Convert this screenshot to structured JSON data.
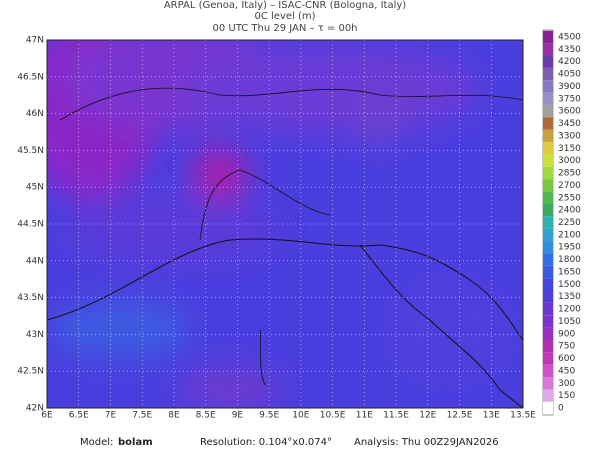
{
  "header": {
    "line1": "ARPAL (Genoa, Italy)  –  ISAC-CNR (Bologna, Italy)",
    "line2": "0C level (m)",
    "line3": "00 UTC Thu 29 JAN  –  τ = 00h"
  },
  "x_labels": [
    "6E",
    "6.5E",
    "7E",
    "7.5E",
    "8E",
    "8.5E",
    "9E",
    "9.5E",
    "10E",
    "10.5E",
    "11E",
    "11.5E",
    "12E",
    "12.5E",
    "13E",
    "13.5E"
  ],
  "y_labels": [
    "47N",
    "46.5N",
    "46N",
    "45.5N",
    "45N",
    "44.5N",
    "44N",
    "43.5N",
    "43N",
    "42.5N",
    "42N"
  ],
  "colorbar": {
    "labels": [
      "4500",
      "4350",
      "4200",
      "4050",
      "3900",
      "3750",
      "3600",
      "3450",
      "3300",
      "3150",
      "3000",
      "2850",
      "2700",
      "2550",
      "2400",
      "2250",
      "2100",
      "1950",
      "1800",
      "1650",
      "1500",
      "1350",
      "1200",
      "1050",
      "900",
      "750",
      "600",
      "450",
      "300",
      "150",
      "0"
    ],
    "colors": [
      "#8a1f8f",
      "#9b2ea0",
      "#6a3ca8",
      "#7d5fb0",
      "#8a7bc0",
      "#9a8fc8",
      "#a0a0a0",
      "#b06a3a",
      "#c8a040",
      "#e0c840",
      "#c8e040",
      "#a0d840",
      "#78c840",
      "#50b850",
      "#40a860",
      "#30b0b0",
      "#30a0d0",
      "#3090e0",
      "#3070e0",
      "#3a5ae0",
      "#4646dc",
      "#5040d8",
      "#6a3ad0",
      "#7a34c8",
      "#9a30c0",
      "#b030b0",
      "#c038b8",
      "#d050c8",
      "#d878d8",
      "#e0a8e8",
      "#ffffff"
    ]
  },
  "footer": {
    "model_label": "Model:",
    "model": "bolam",
    "resolution": "Resolution: 0.104°x0.074°",
    "analysis": "Analysis: Thu 00Z29JAN2026"
  }
}
